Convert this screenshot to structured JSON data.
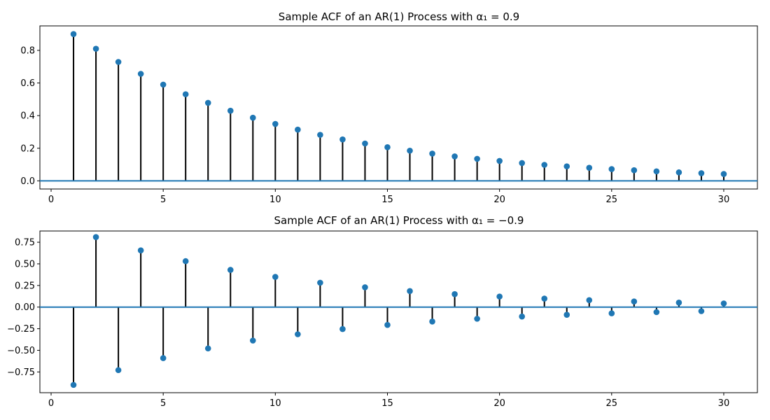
{
  "chart_data": [
    {
      "type": "stem",
      "title": "Sample ACF of an AR(1) Process with α₁ = 0.9",
      "xlabel": "",
      "ylabel": "",
      "xlim": [
        -0.5,
        31.5
      ],
      "ylim": [
        -0.05,
        0.95
      ],
      "xticks": [
        0,
        5,
        10,
        15,
        20,
        25,
        30
      ],
      "yticks": [
        0.0,
        0.2,
        0.4,
        0.6,
        0.8
      ],
      "ytick_decimals": 1,
      "grid": false,
      "baseline": 0,
      "x": [
        1,
        2,
        3,
        4,
        5,
        6,
        7,
        8,
        9,
        10,
        11,
        12,
        13,
        14,
        15,
        16,
        17,
        18,
        19,
        20,
        21,
        22,
        23,
        24,
        25,
        26,
        27,
        28,
        29,
        30
      ],
      "values": [
        0.9,
        0.81,
        0.729,
        0.656,
        0.59,
        0.531,
        0.478,
        0.43,
        0.387,
        0.349,
        0.314,
        0.282,
        0.254,
        0.229,
        0.206,
        0.185,
        0.167,
        0.15,
        0.135,
        0.122,
        0.109,
        0.098,
        0.089,
        0.08,
        0.072,
        0.065,
        0.058,
        0.052,
        0.047,
        0.042
      ],
      "colors": {
        "marker": "#1f77b4",
        "stem": "#000000",
        "baseline": "#1f77b4"
      }
    },
    {
      "type": "stem",
      "title": "Sample ACF of an AR(1) Process with α₁ = −0.9",
      "xlabel": "",
      "ylabel": "",
      "xlim": [
        -0.5,
        31.5
      ],
      "ylim": [
        -0.99,
        0.88
      ],
      "xticks": [
        0,
        5,
        10,
        15,
        20,
        25,
        30
      ],
      "yticks": [
        -0.75,
        -0.5,
        -0.25,
        0.0,
        0.25,
        0.5,
        0.75
      ],
      "ytick_decimals": 2,
      "grid": false,
      "baseline": 0,
      "x": [
        1,
        2,
        3,
        4,
        5,
        6,
        7,
        8,
        9,
        10,
        11,
        12,
        13,
        14,
        15,
        16,
        17,
        18,
        19,
        20,
        21,
        22,
        23,
        24,
        25,
        26,
        27,
        28,
        29,
        30
      ],
      "values": [
        -0.9,
        0.81,
        -0.729,
        0.656,
        -0.59,
        0.531,
        -0.478,
        0.43,
        -0.387,
        0.349,
        -0.314,
        0.282,
        -0.254,
        0.229,
        -0.206,
        0.185,
        -0.167,
        0.15,
        -0.135,
        0.122,
        -0.109,
        0.098,
        -0.089,
        0.08,
        -0.072,
        0.065,
        -0.058,
        0.052,
        -0.047,
        0.042
      ],
      "colors": {
        "marker": "#1f77b4",
        "stem": "#000000",
        "baseline": "#1f77b4"
      }
    }
  ]
}
